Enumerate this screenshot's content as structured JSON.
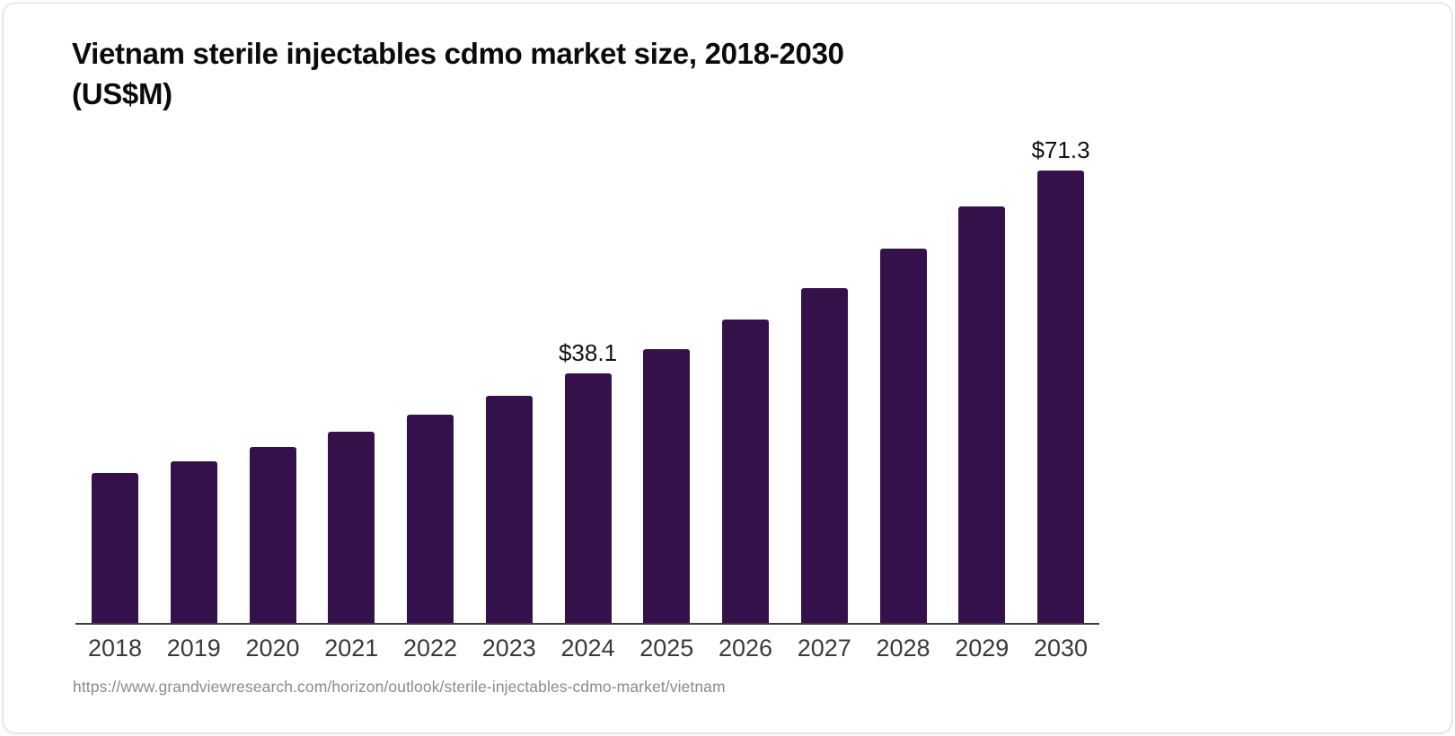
{
  "header": {
    "title_line1": "Vietnam sterile injectables cdmo market size, 2018-2030",
    "title_line2": "(US$M)"
  },
  "footer": {
    "source_url": "https://www.grandviewresearch.com/horizon/outlook/sterile-injectables-cdmo-market/vietnam"
  },
  "chart_data": {
    "type": "bar",
    "title": "Vietnam sterile injectables cdmo market size, 2018-2030 (US$M)",
    "unit": "US$M",
    "categories": [
      "2018",
      "2019",
      "2020",
      "2021",
      "2022",
      "2023",
      "2024",
      "2025",
      "2026",
      "2027",
      "2028",
      "2029",
      "2030"
    ],
    "values": [
      22.9,
      24.6,
      26.8,
      29.2,
      31.8,
      34.6,
      38.1,
      41.8,
      46.3,
      51.1,
      57.0,
      63.5,
      71.3
    ],
    "data_labels": {
      "2024": "$38.1",
      "2030": "$71.3"
    },
    "bar_color": "#35114C",
    "axis_color": "#3d3d3d",
    "tick_label_color": "#3a3a3a",
    "ylim": [
      0,
      75
    ],
    "xlabel": "",
    "ylabel": "",
    "grid": false,
    "legend_position": "none"
  }
}
